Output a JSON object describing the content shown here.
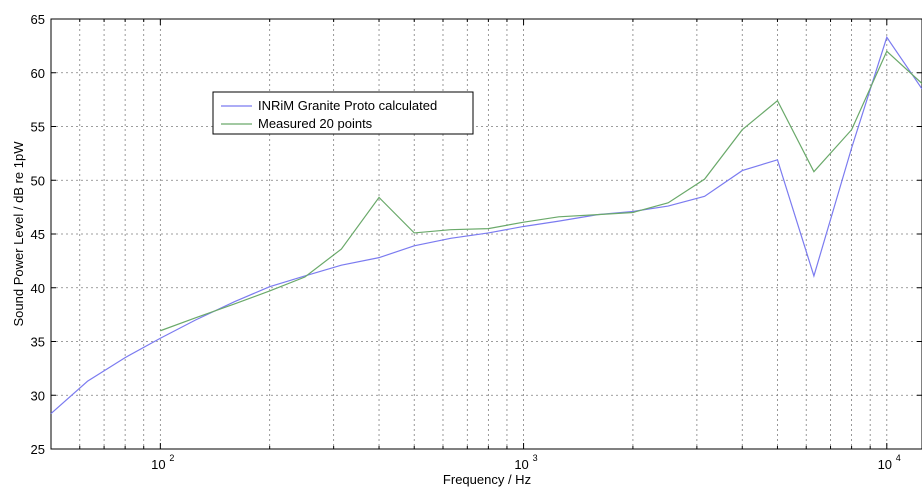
{
  "chart_data": {
    "type": "line",
    "xlabel": "Frequency / Hz",
    "ylabel": "Sound Power Level / dB re 1pW",
    "xscale": "log",
    "xlim": [
      50,
      12500
    ],
    "ylim": [
      25,
      65
    ],
    "grid": true,
    "legend_position": "upper-left",
    "y_ticks": [
      "25",
      "30",
      "35",
      "40",
      "45",
      "50",
      "55",
      "60",
      "65"
    ],
    "x_tick_labels": [
      {
        "base": "10",
        "exp": "2",
        "value": 100
      },
      {
        "base": "10",
        "exp": "3",
        "value": 1000
      },
      {
        "base": "10",
        "exp": "4",
        "value": 10000
      }
    ],
    "series": [
      {
        "name": "INRiM Granite Proto calculated",
        "color": "#7b7bf0",
        "x": [
          50,
          63,
          80,
          100,
          125,
          160,
          200,
          250,
          315,
          400,
          500,
          630,
          800,
          1000,
          1250,
          1600,
          2000,
          2500,
          3150,
          4000,
          5000,
          6300,
          8000,
          10000,
          12500
        ],
        "y": [
          28.3,
          31.3,
          33.5,
          35.3,
          37.0,
          38.7,
          40.1,
          41.1,
          42.1,
          42.8,
          43.9,
          44.6,
          45.1,
          45.7,
          46.2,
          46.8,
          47.1,
          47.6,
          48.5,
          50.9,
          51.9,
          41.1,
          53.0,
          63.3,
          58.5
        ]
      },
      {
        "name": "Measured 20 points",
        "color": "#6aa96a",
        "x": [
          100,
          125,
          160,
          200,
          250,
          315,
          400,
          500,
          630,
          800,
          1000,
          1250,
          1600,
          2000,
          2500,
          3150,
          4000,
          5000,
          6300,
          8000,
          10000,
          12500
        ],
        "y": [
          36.0,
          37.2,
          38.5,
          39.7,
          41.0,
          43.6,
          48.4,
          45.1,
          45.4,
          45.5,
          46.1,
          46.6,
          46.8,
          47.0,
          47.9,
          50.1,
          54.7,
          57.4,
          50.8,
          54.7,
          62.0,
          59.0
        ]
      }
    ]
  }
}
